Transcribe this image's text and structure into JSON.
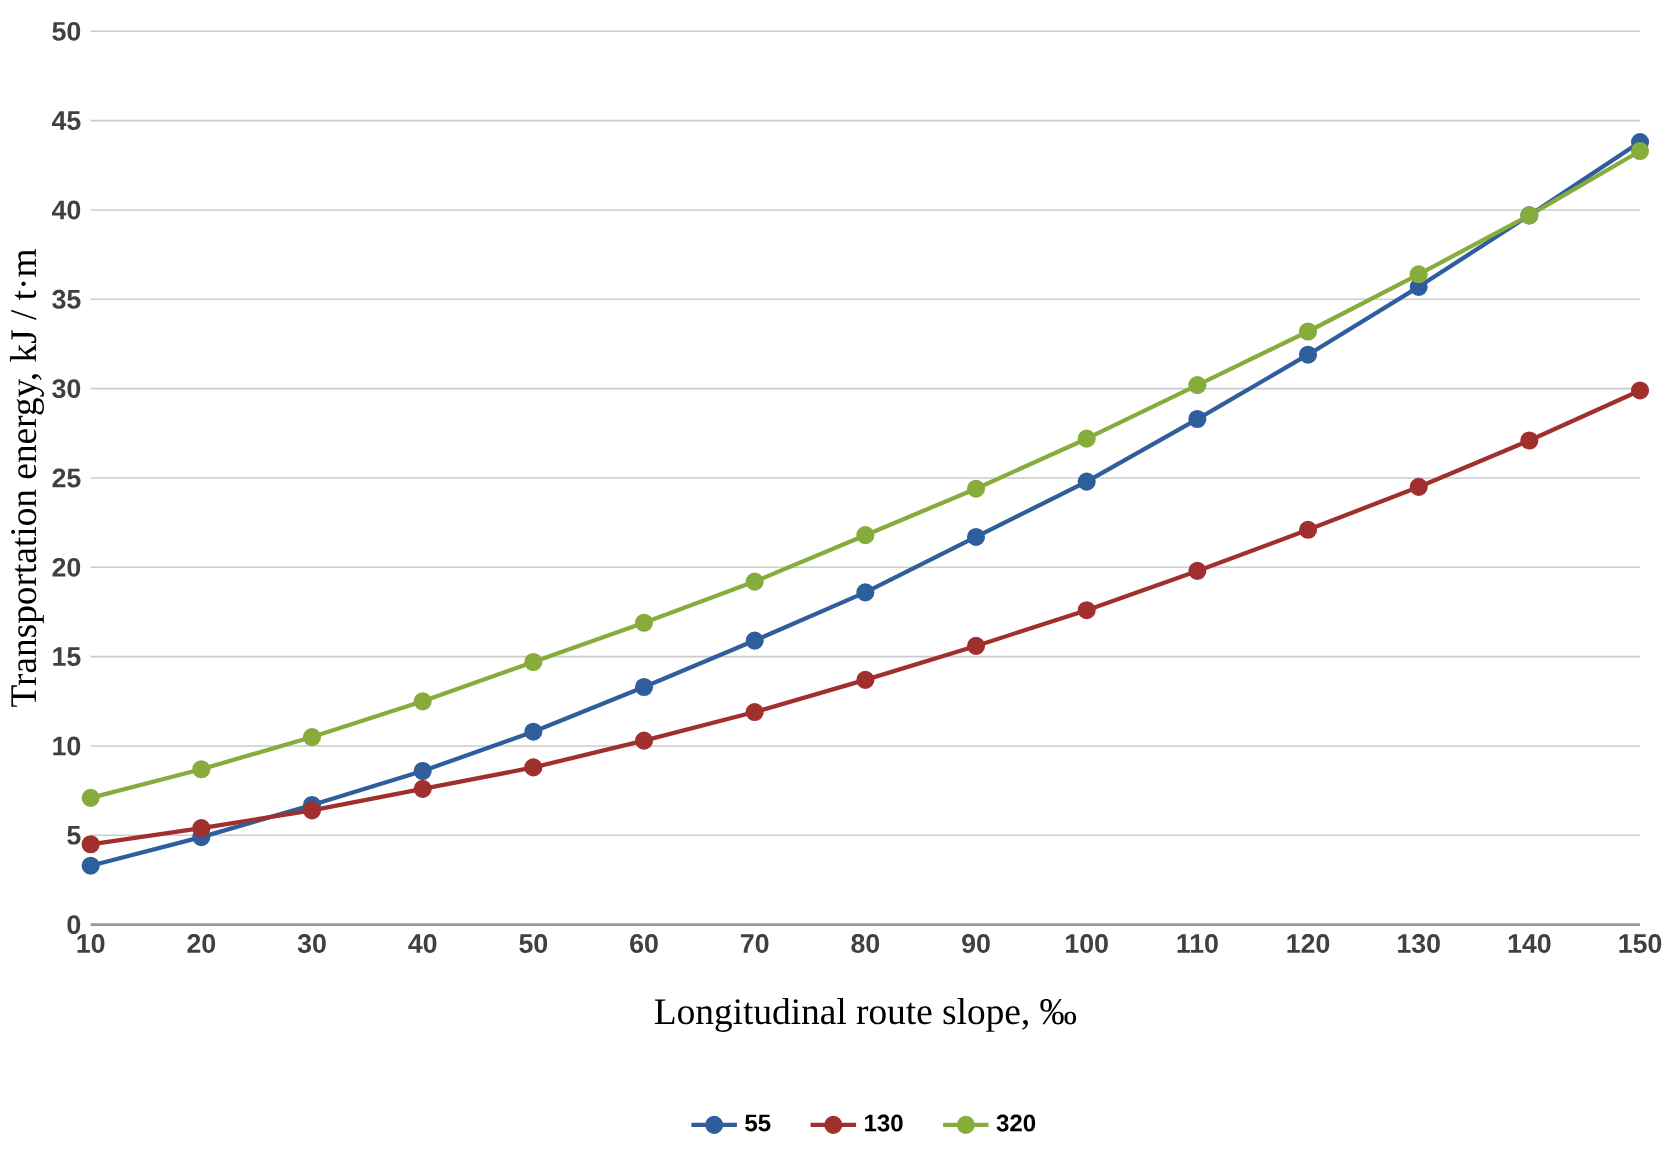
{
  "chart_data": {
    "type": "line",
    "xlabel": "Longitudinal route slope, ‰",
    "ylabel": "Transportation energy, kJ / t·m",
    "x": [
      10,
      20,
      30,
      40,
      50,
      60,
      70,
      80,
      90,
      100,
      110,
      120,
      130,
      140,
      150
    ],
    "series": [
      {
        "name": "55",
        "color": "#2e5e9c",
        "values": [
          3.3,
          4.9,
          6.7,
          8.6,
          10.8,
          13.3,
          15.9,
          18.6,
          21.7,
          24.8,
          28.3,
          31.9,
          35.7,
          39.7,
          43.8
        ]
      },
      {
        "name": "130",
        "color": "#a0302e",
        "values": [
          4.5,
          5.4,
          6.4,
          7.6,
          8.8,
          10.3,
          11.9,
          13.7,
          15.6,
          17.6,
          19.8,
          22.1,
          24.5,
          27.1,
          29.9
        ]
      },
      {
        "name": "320",
        "color": "#86ad3c",
        "values": [
          7.1,
          8.7,
          10.5,
          12.5,
          14.7,
          16.9,
          19.2,
          21.8,
          24.4,
          27.2,
          30.2,
          33.2,
          36.4,
          39.7,
          43.3
        ]
      }
    ],
    "xlim": [
      10,
      150
    ],
    "xticks": [
      10,
      20,
      30,
      40,
      50,
      60,
      70,
      80,
      90,
      100,
      110,
      120,
      130,
      140,
      150
    ],
    "ylim": [
      0,
      50
    ],
    "yticks": [
      0,
      5,
      10,
      15,
      20,
      25,
      30,
      35,
      40,
      45,
      50
    ],
    "grid": "y",
    "legend": "bottom",
    "marker": "circle",
    "line_style": "solid"
  }
}
